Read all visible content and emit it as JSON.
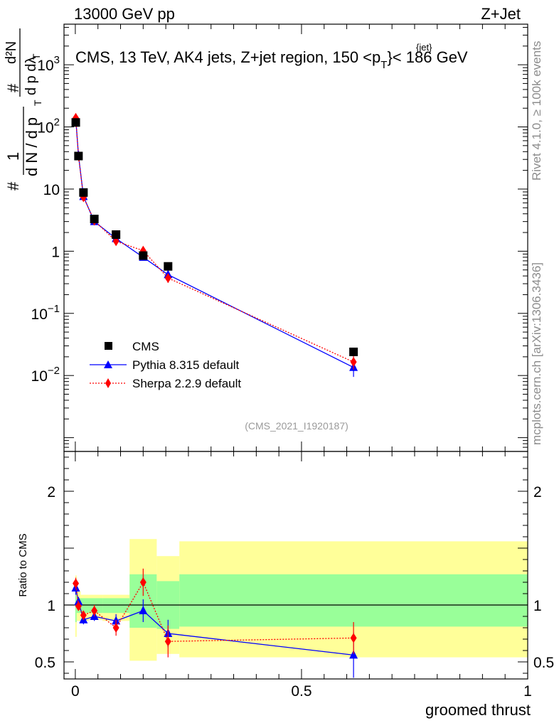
{
  "header": {
    "left_label": "13000 GeV pp",
    "right_label": "Z+Jet"
  },
  "side_labels": {
    "rivet": "Rivet 4.1.0, ≥ 100k events",
    "mcplots": "mcplots.cern.ch [arXiv:1306.3436]"
  },
  "ylabel_text": {
    "hash": "#",
    "num_main": "d²N",
    "den_main": "d p  dλ",
    "sub_t": "T",
    "frac1_num": "1",
    "frac1_den": "d N / d p",
    "frac1_sub": "T"
  },
  "colors": {
    "cms": "#000000",
    "pythia": "#0000ff",
    "sherpa": "#ff0000",
    "band_outer": "#ffff99",
    "band_inner": "#99ff99"
  },
  "chart_data": [
    {
      "type": "scatter",
      "panel": "main",
      "title": "CMS, 13 TeV, AK4 jets, Z+jet region, 150 <p",
      "title_sup": "{jet}",
      "title_sub": "T",
      "title_suffix": "}< 186 GeV",
      "xlabel": "groomed thrust",
      "ylog": true,
      "xlim": [
        -0.025,
        1.0
      ],
      "ylim": [
        0.0006,
        4500
      ],
      "yticks": [
        {
          "value": 0.01,
          "base": "10",
          "exp": "−2"
        },
        {
          "value": 0.1,
          "base": "10",
          "exp": "−1"
        },
        {
          "value": 1,
          "base": "1",
          "exp": ""
        },
        {
          "value": 10,
          "base": "10",
          "exp": ""
        },
        {
          "value": 100,
          "base": "10",
          "exp": "2"
        },
        {
          "value": 1000,
          "base": "10",
          "exp": "3"
        }
      ],
      "reference": "(CMS_2021_I1920187)",
      "legend_position": "bottom-left",
      "series": [
        {
          "name": "CMS",
          "marker": "square",
          "x": [
            0.001,
            0.007,
            0.018,
            0.042,
            0.09,
            0.15,
            0.205,
            0.615
          ],
          "y": [
            118,
            34,
            8.8,
            3.3,
            1.85,
            0.85,
            0.57,
            0.024
          ],
          "err": [
            0,
            0,
            0,
            0,
            0,
            0,
            0,
            0
          ]
        },
        {
          "name": "Pythia 8.315 default",
          "marker": "triangle",
          "line": "solid",
          "x": [
            0.001,
            0.007,
            0.018,
            0.042,
            0.09,
            0.15,
            0.205,
            0.615
          ],
          "y": [
            135,
            35,
            7.6,
            3.0,
            1.6,
            0.8,
            0.42,
            0.0135
          ],
          "err": [
            6,
            1.5,
            0.4,
            0.2,
            0.12,
            0.08,
            0.07,
            0.004
          ]
        },
        {
          "name": "Sherpa 2.2.9 default",
          "marker": "diamond",
          "line": "dotted",
          "x": [
            0.001,
            0.007,
            0.018,
            0.042,
            0.09,
            0.15,
            0.205,
            0.615
          ],
          "y": [
            140,
            34,
            7.4,
            3.1,
            1.45,
            1.02,
            0.37,
            0.0165
          ],
          "err": [
            6,
            1.5,
            0.4,
            0.2,
            0.15,
            0.1,
            0.06,
            0.004
          ]
        }
      ]
    },
    {
      "type": "scatter",
      "panel": "ratio",
      "ylabel": "Ratio to CMS",
      "xlabel": "groomed thrust",
      "xlim": [
        -0.025,
        1.0
      ],
      "ylim": [
        0.35,
        2.35
      ],
      "xticks": [
        {
          "value": 0,
          "label": "0"
        },
        {
          "value": 0.5,
          "label": "0.5"
        },
        {
          "value": 1,
          "label": "1"
        }
      ],
      "yticks": [
        {
          "value": 0.5,
          "label": "0.5"
        },
        {
          "value": 1,
          "label": "1"
        },
        {
          "value": 2,
          "label": "2"
        }
      ],
      "reference_line": 1,
      "bands": [
        {
          "x0": 0.0,
          "x1": 0.003,
          "outer": [
            0.72,
            1.26
          ],
          "inner": [
            0.85,
            1.15
          ]
        },
        {
          "x0": 0.003,
          "x1": 0.012,
          "outer": [
            0.86,
            1.12
          ],
          "inner": [
            0.93,
            1.06
          ]
        },
        {
          "x0": 0.012,
          "x1": 0.03,
          "outer": [
            0.86,
            1.09
          ],
          "inner": [
            0.93,
            1.06
          ]
        },
        {
          "x0": 0.03,
          "x1": 0.06,
          "outer": [
            0.87,
            1.09
          ],
          "inner": [
            0.93,
            1.06
          ]
        },
        {
          "x0": 0.06,
          "x1": 0.12,
          "outer": [
            0.86,
            1.09
          ],
          "inner": [
            0.93,
            1.06
          ]
        },
        {
          "x0": 0.12,
          "x1": 0.18,
          "outer": [
            0.51,
            1.58
          ],
          "inner": [
            0.8,
            1.27
          ]
        },
        {
          "x0": 0.18,
          "x1": 0.23,
          "outer": [
            0.57,
            1.43
          ],
          "inner": [
            0.79,
            1.21
          ]
        },
        {
          "x0": 0.23,
          "x1": 1.0,
          "outer": [
            0.54,
            1.56
          ],
          "inner": [
            0.81,
            1.27
          ]
        }
      ],
      "series": [
        {
          "name": "Pythia 8.315 default",
          "marker": "triangle",
          "line": "solid",
          "x": [
            0.001,
            0.007,
            0.018,
            0.042,
            0.09,
            0.15,
            0.205,
            0.615
          ],
          "y": [
            1.15,
            1.03,
            0.87,
            0.9,
            0.86,
            0.95,
            0.75,
            0.56
          ],
          "err": [
            0.06,
            0.04,
            0.04,
            0.04,
            0.06,
            0.1,
            0.12,
            0.2
          ]
        },
        {
          "name": "Sherpa 2.2.9 default",
          "marker": "diamond",
          "line": "dotted",
          "x": [
            0.001,
            0.007,
            0.018,
            0.042,
            0.09,
            0.15,
            0.205,
            0.615
          ],
          "y": [
            1.19,
            0.99,
            0.91,
            0.95,
            0.8,
            1.2,
            0.68,
            0.71
          ],
          "err": [
            0.05,
            0.04,
            0.04,
            0.05,
            0.07,
            0.12,
            0.14,
            0.14
          ]
        }
      ]
    }
  ]
}
